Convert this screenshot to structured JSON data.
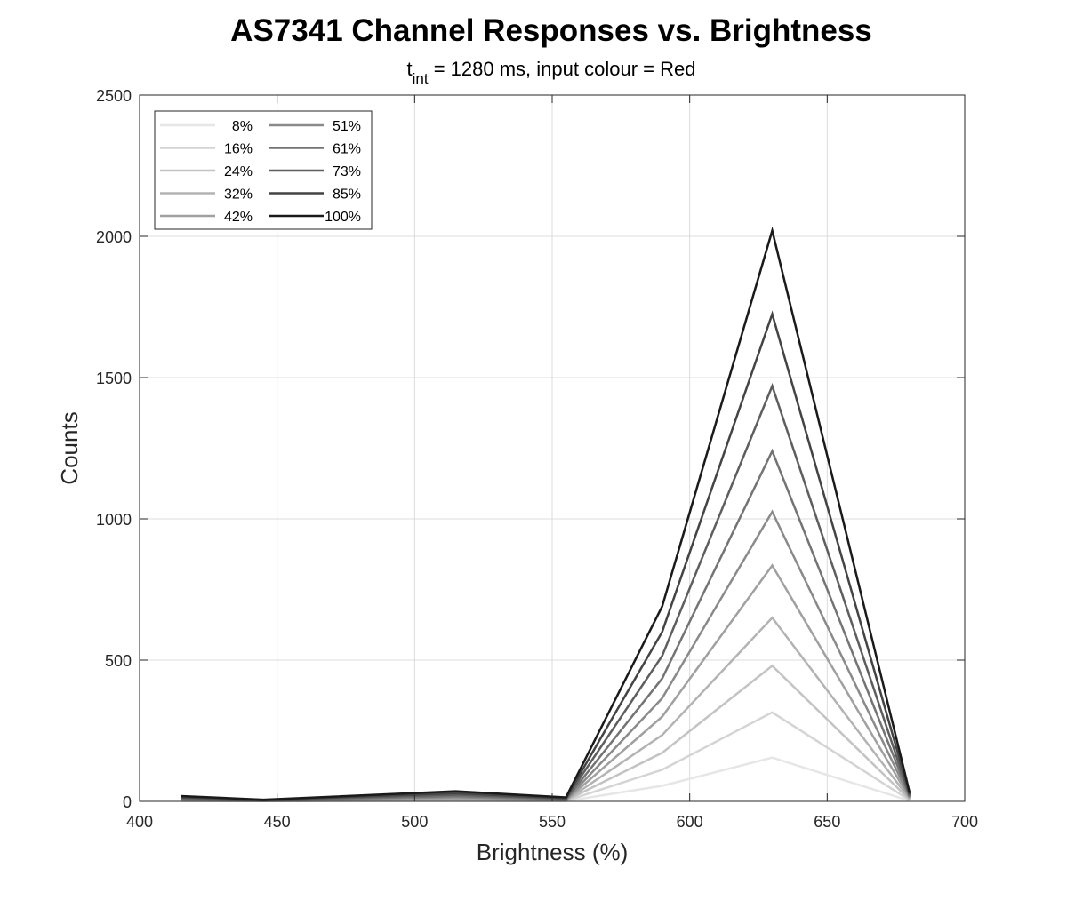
{
  "chart_data": {
    "type": "line",
    "title": "AS7341 Channel Responses vs. Brightness",
    "subtitle": {
      "var": "t",
      "sub": "int",
      "rest": " = 1280 ms, input colour = Red"
    },
    "xlabel": "Brightness (%)",
    "ylabel": "Counts",
    "xlim": [
      400,
      700
    ],
    "ylim": [
      0,
      2500
    ],
    "xticks": [
      400,
      450,
      500,
      550,
      600,
      650,
      700
    ],
    "yticks": [
      0,
      500,
      1000,
      1500,
      2000,
      2500
    ],
    "grid": true,
    "legend": {
      "placement": "top-left",
      "columns": 2
    },
    "x": [
      415,
      445,
      515,
      555,
      590,
      630,
      680
    ],
    "series": [
      {
        "name": "8%",
        "color": "#e6e6e6",
        "values": [
          1,
          1,
          2,
          1,
          55,
          155,
          2
        ]
      },
      {
        "name": "16%",
        "color": "#d4d4d4",
        "values": [
          2,
          1,
          4,
          2,
          112,
          315,
          4
        ]
      },
      {
        "name": "24%",
        "color": "#c3c3c3",
        "values": [
          3,
          1,
          6,
          3,
          172,
          480,
          6
        ]
      },
      {
        "name": "32%",
        "color": "#b3b3b3",
        "values": [
          4,
          2,
          8,
          3,
          235,
          650,
          8
        ]
      },
      {
        "name": "42%",
        "color": "#a0a0a0",
        "values": [
          6,
          2,
          11,
          4,
          300,
          835,
          11
        ]
      },
      {
        "name": "51%",
        "color": "#8a8a8a",
        "values": [
          8,
          3,
          15,
          5,
          365,
          1025,
          14
        ]
      },
      {
        "name": "61%",
        "color": "#747474",
        "values": [
          10,
          3,
          19,
          7,
          435,
          1240,
          17
        ]
      },
      {
        "name": "73%",
        "color": "#5e5e5e",
        "values": [
          12,
          4,
          24,
          9,
          515,
          1470,
          20
        ]
      },
      {
        "name": "85%",
        "color": "#444444",
        "values": [
          15,
          5,
          29,
          11,
          600,
          1725,
          25
        ]
      },
      {
        "name": "100%",
        "color": "#1a1a1a",
        "values": [
          19,
          6,
          36,
          14,
          690,
          2020,
          30
        ]
      }
    ]
  }
}
